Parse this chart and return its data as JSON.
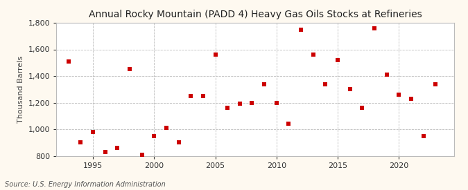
{
  "title": "Annual Rocky Mountain (PADD 4) Heavy Gas Oils Stocks at Refineries",
  "ylabel": "Thousand Barrels",
  "source": "Source: U.S. Energy Information Administration",
  "background_color": "#fef9f0",
  "plot_bg_color": "#ffffff",
  "dot_color": "#cc0000",
  "years": [
    1993,
    1994,
    1995,
    1996,
    1997,
    1998,
    1999,
    2000,
    2001,
    2002,
    2003,
    2004,
    2005,
    2006,
    2007,
    2008,
    2009,
    2010,
    2011,
    2012,
    2013,
    2014,
    2015,
    2016,
    2017,
    2018,
    2019,
    2020,
    2021,
    2022,
    2023
  ],
  "values": [
    1510,
    900,
    980,
    830,
    860,
    1450,
    810,
    950,
    1010,
    900,
    1250,
    1250,
    1560,
    1160,
    1190,
    1200,
    1340,
    1200,
    1040,
    1750,
    1560,
    1340,
    1520,
    1300,
    1160,
    1760,
    1410,
    1260,
    1230,
    950,
    1340
  ],
  "xlim": [
    1992,
    2024.5
  ],
  "ylim": [
    800,
    1800
  ],
  "yticks": [
    800,
    1000,
    1200,
    1400,
    1600,
    1800
  ],
  "xticks": [
    1995,
    2000,
    2005,
    2010,
    2015,
    2020
  ],
  "title_fontsize": 10,
  "label_fontsize": 8,
  "tick_fontsize": 8,
  "source_fontsize": 7,
  "marker_size": 4
}
